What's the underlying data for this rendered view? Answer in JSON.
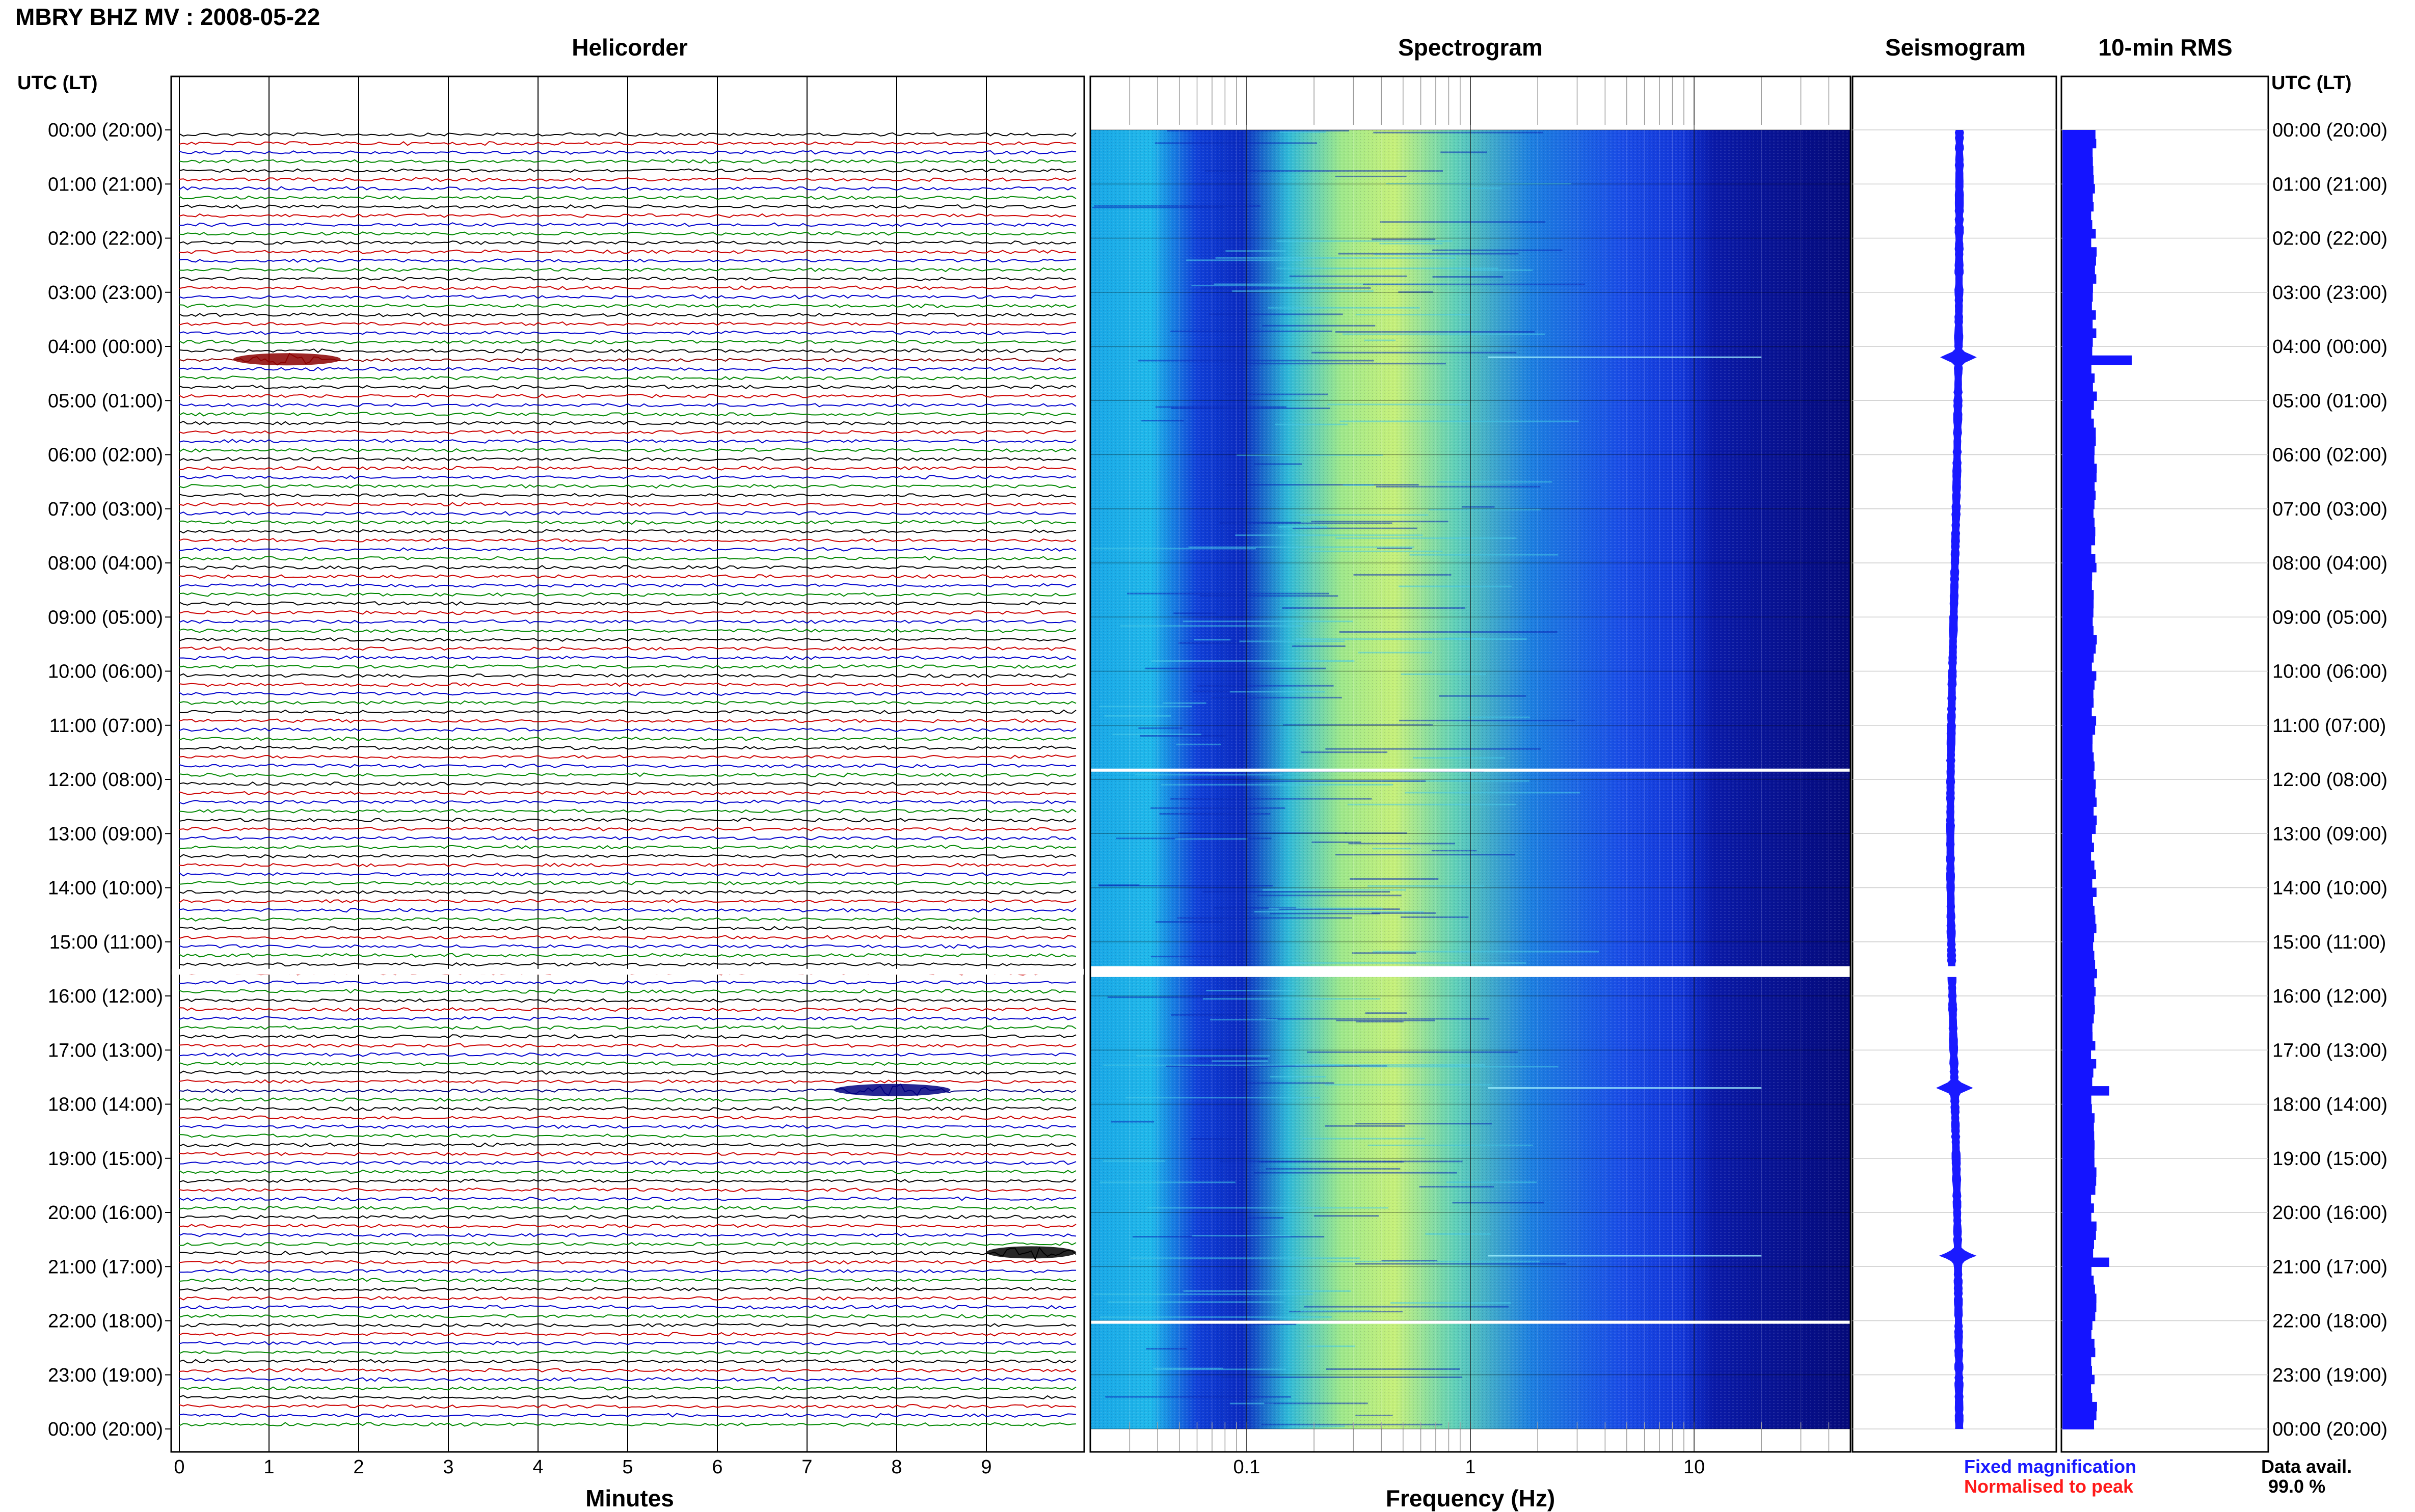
{
  "header": {
    "title": "MBRY BHZ MV : 2008-05-22"
  },
  "panels": {
    "helicorder": "Helicorder",
    "spectrogram": "Spectrogram",
    "seismogram": "Seismogram",
    "rms": "10-min RMS"
  },
  "axis": {
    "utc_label_left": "UTC (LT)",
    "utc_label_right": "UTC (LT)",
    "minutes_label": "Minutes",
    "frequency_label": "Frequency (Hz)"
  },
  "legend": {
    "fixed": "Fixed magnification",
    "fixed_color": "#1a1aff",
    "normalised": "Normalised to peak",
    "normalised_color": "#ff1a1a"
  },
  "data_avail": {
    "label": "Data avail.",
    "value": "99.0 %"
  },
  "time_labels": [
    "00:00 (20:00)",
    "01:00 (21:00)",
    "02:00 (22:00)",
    "03:00 (23:00)",
    "04:00 (00:00)",
    "05:00 (01:00)",
    "06:00 (02:00)",
    "07:00 (03:00)",
    "08:00 (04:00)",
    "09:00 (05:00)",
    "10:00 (06:00)",
    "11:00 (07:00)",
    "12:00 (08:00)",
    "13:00 (09:00)",
    "14:00 (10:00)",
    "15:00 (11:00)",
    "16:00 (12:00)",
    "17:00 (13:00)",
    "18:00 (14:00)",
    "19:00 (15:00)",
    "20:00 (16:00)",
    "21:00 (17:00)",
    "22:00 (18:00)",
    "23:00 (19:00)",
    "00:00 (20:00)"
  ],
  "chart_data": {
    "type": "heatmap",
    "station": "MBRY BHZ MV",
    "date": "2008-05-22",
    "helicorder": {
      "x_ticks": [
        "0",
        "1",
        "2",
        "3",
        "4",
        "5",
        "6",
        "7",
        "8",
        "9"
      ],
      "xlim": [
        0,
        10
      ],
      "trace_colors": [
        "#000000",
        "#cc0000",
        "#0000cc",
        "#008800"
      ],
      "events": [
        {
          "hour": 4.2,
          "minute_start": 0.6,
          "minute_end": 1.8,
          "color": "#8b0000"
        },
        {
          "hour": 17.7,
          "minute_start": 7.3,
          "minute_end": 8.6,
          "color": "#000080"
        },
        {
          "hour": 20.7,
          "minute_start": 9.0,
          "minute_end": 10.0,
          "color": "#000000"
        }
      ],
      "gap_hours": [
        [
          15.5,
          15.55
        ]
      ]
    },
    "spectrogram": {
      "x_scale": "log",
      "xlim": [
        0.02,
        50
      ],
      "x_ticks": [
        0.1,
        1,
        10
      ],
      "x_tick_labels": [
        "0.1",
        "1",
        "10"
      ],
      "peak_band_hz": [
        0.25,
        0.6
      ],
      "gap_hours": [
        [
          11.8,
          11.85
        ],
        [
          15.45,
          15.65
        ],
        [
          22.0,
          22.05
        ]
      ],
      "bright_lines_hours": [
        4.2,
        17.7,
        20.8
      ]
    },
    "seismogram": {
      "events_hours": [
        4.2,
        17.7,
        20.8
      ],
      "gap_hours": [
        [
          15.45,
          15.65
        ]
      ]
    },
    "rms_10min": {
      "peaks": [
        {
          "hour": 4.2,
          "relative": 1.0
        },
        {
          "hour": 17.7,
          "relative": 0.45
        },
        {
          "hour": 20.8,
          "relative": 0.45
        }
      ]
    }
  }
}
